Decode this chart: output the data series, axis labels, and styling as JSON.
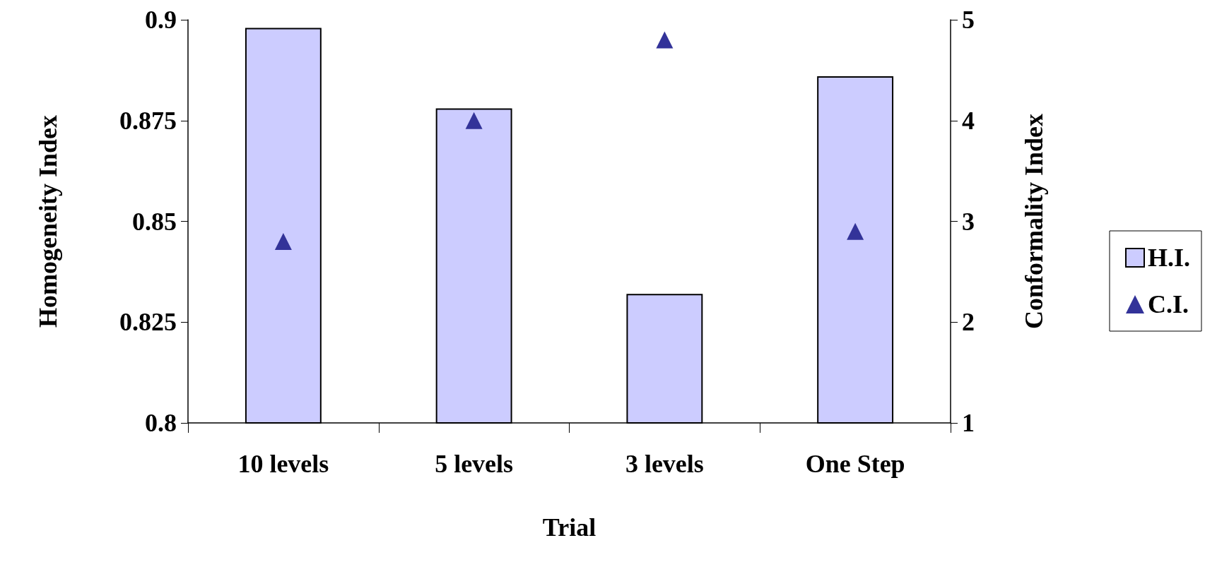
{
  "chart_data": {
    "type": "bar",
    "xlabel": "Trial",
    "ylabel": "Homogeneity Index",
    "y2label": "Conformality Index",
    "categories": [
      "10 levels",
      "5 levels",
      "3 levels",
      "One Step"
    ],
    "series": [
      {
        "name": "H.I.",
        "color": "#ccccff",
        "values": [
          0.898,
          0.878,
          0.832,
          0.886
        ]
      },
      {
        "name": "C.I.",
        "type": "scatter",
        "axis": "y2",
        "marker": "triangle",
        "color": "#333399",
        "values": [
          2.8,
          4.0,
          4.8,
          2.9
        ]
      }
    ],
    "ylim": [
      0.8,
      0.9
    ],
    "yticks": [
      0.8,
      0.825,
      0.85,
      0.875,
      0.9
    ],
    "y2lim": [
      1,
      5
    ],
    "y2ticks": [
      1,
      2,
      3,
      4,
      5
    ],
    "grid": false,
    "legend": "right"
  }
}
